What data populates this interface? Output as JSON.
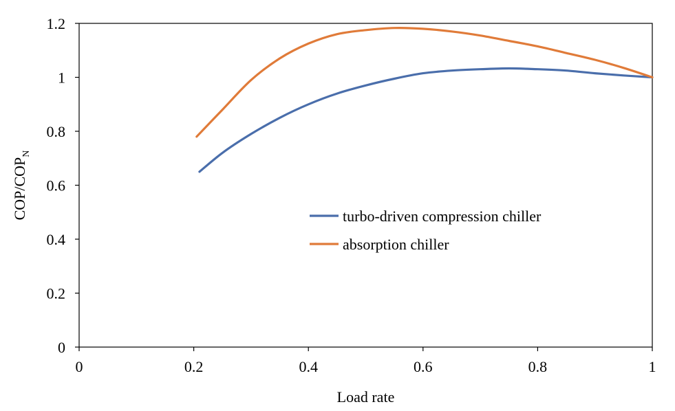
{
  "chart_data": {
    "type": "line",
    "title": "",
    "xlabel": "Load rate",
    "ylabel": {
      "main": "COP/COP",
      "subscript": "N"
    },
    "xlim": [
      0,
      1
    ],
    "ylim": [
      0,
      1.2
    ],
    "xticks": [
      "0",
      "0.2",
      "0.4",
      "0.6",
      "0.8",
      "1"
    ],
    "yticks": [
      "0",
      "0.2",
      "0.4",
      "0.6",
      "0.8",
      "1",
      "1.2"
    ],
    "grid": false,
    "legend_position": "center-right",
    "series": [
      {
        "name": "turbo-driven compression chiller",
        "color": "#4a6eab",
        "x": [
          0.21,
          0.25,
          0.3,
          0.35,
          0.4,
          0.45,
          0.5,
          0.55,
          0.6,
          0.65,
          0.7,
          0.75,
          0.8,
          0.85,
          0.9,
          0.95,
          1.0
        ],
        "y": [
          0.65,
          0.72,
          0.79,
          0.85,
          0.9,
          0.94,
          0.97,
          0.995,
          1.015,
          1.025,
          1.03,
          1.033,
          1.03,
          1.025,
          1.015,
          1.007,
          1.0
        ]
      },
      {
        "name": "absorption chiller",
        "color": "#e07b39",
        "x": [
          0.205,
          0.25,
          0.3,
          0.35,
          0.4,
          0.45,
          0.5,
          0.55,
          0.6,
          0.65,
          0.7,
          0.75,
          0.8,
          0.85,
          0.9,
          0.95,
          1.0
        ],
        "y": [
          0.78,
          0.88,
          0.99,
          1.07,
          1.125,
          1.16,
          1.175,
          1.183,
          1.18,
          1.17,
          1.155,
          1.135,
          1.115,
          1.09,
          1.065,
          1.035,
          1.0
        ]
      }
    ]
  }
}
